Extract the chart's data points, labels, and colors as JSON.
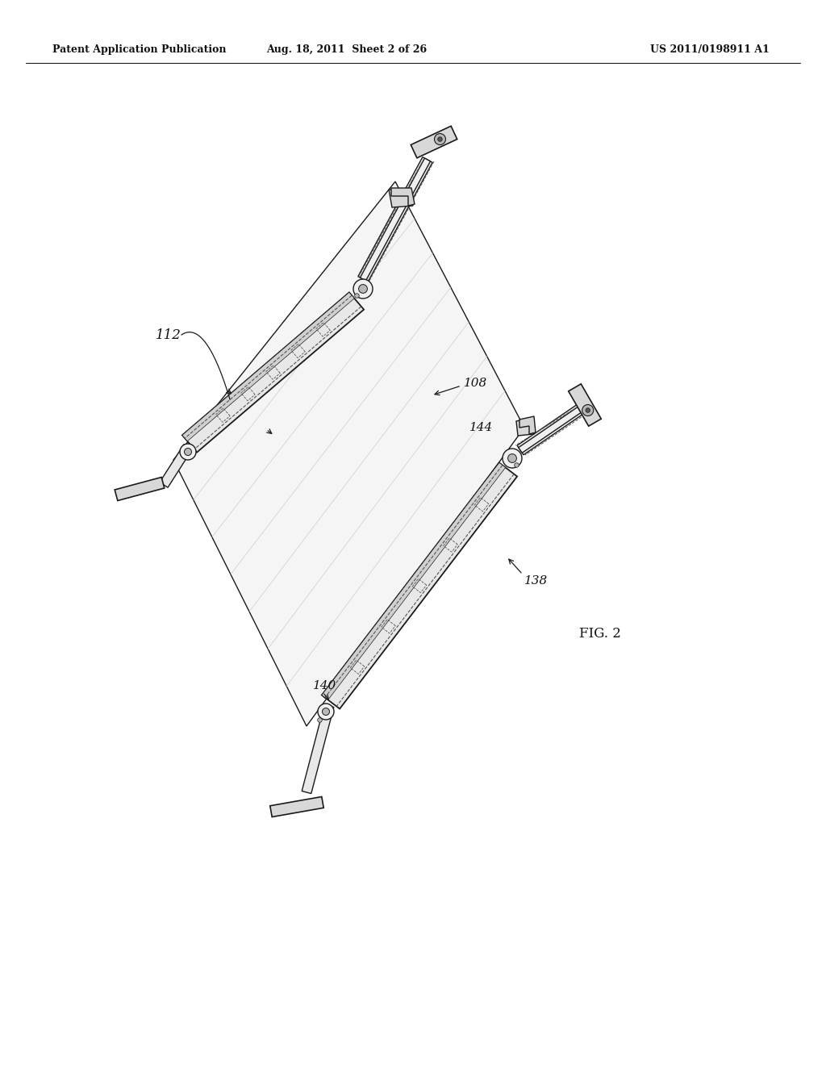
{
  "bg_color": "#ffffff",
  "header_left": "Patent Application Publication",
  "header_mid": "Aug. 18, 2011  Sheet 2 of 26",
  "header_right": "US 2011/0198911 A1",
  "fig_label": "FIG. 2",
  "line_color": "#1a1a1a",
  "dashed_color": "#555555",
  "face_light": "#f0f0f0",
  "face_mid": "#d8d8d8",
  "face_dark": "#b8b8b8"
}
